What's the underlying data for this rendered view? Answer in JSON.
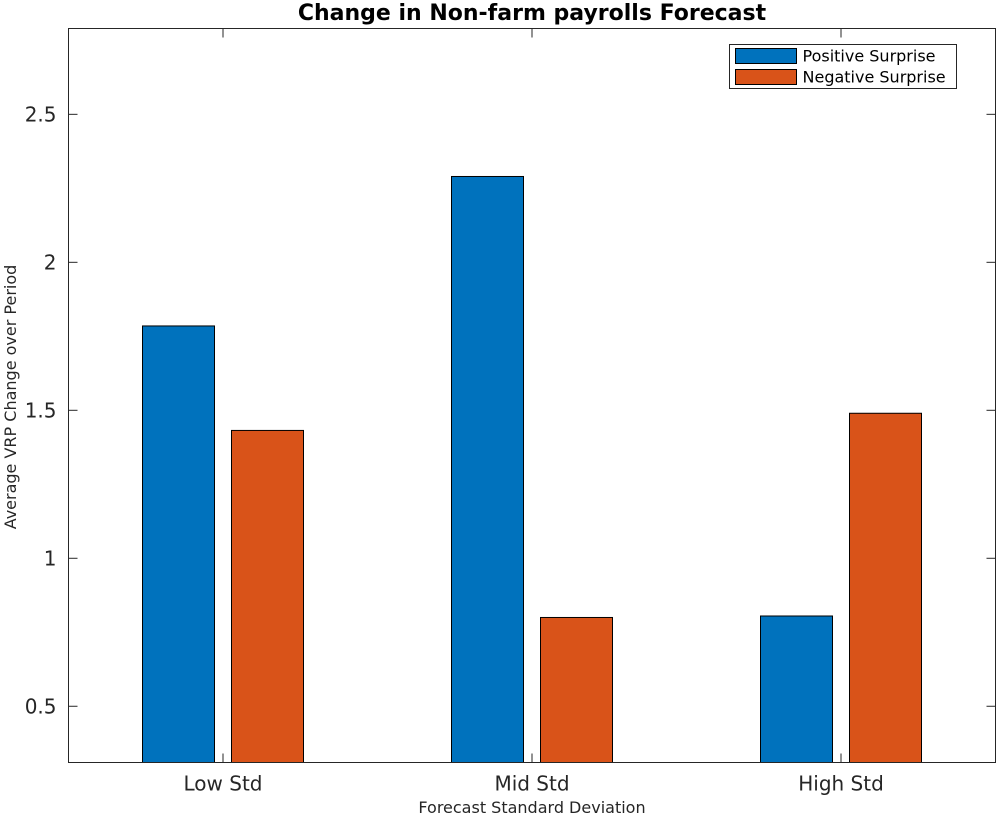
{
  "chart_data": {
    "type": "bar",
    "title": "Change in Non-farm payrolls Forecast",
    "xlabel": "Forecast Standard Deviation",
    "ylabel": "Average VRP Change over Period",
    "categories": [
      "Low Std",
      "Mid Std",
      "High Std"
    ],
    "series": [
      {
        "name": "Positive Surprise",
        "values": [
          1.785,
          2.29,
          0.805
        ],
        "color": "#0072BD"
      },
      {
        "name": "Negative Surprise",
        "values": [
          1.432,
          0.8,
          1.49
        ],
        "color": "#D95319"
      }
    ],
    "ylim": [
      0.31,
      2.79
    ],
    "yticks": [
      0.5,
      1,
      1.5,
      2,
      2.5
    ],
    "ytick_labels": [
      "0.5",
      "1",
      "1.5",
      "2",
      "2.5"
    ],
    "grid": false,
    "legend_position": "top-right"
  }
}
